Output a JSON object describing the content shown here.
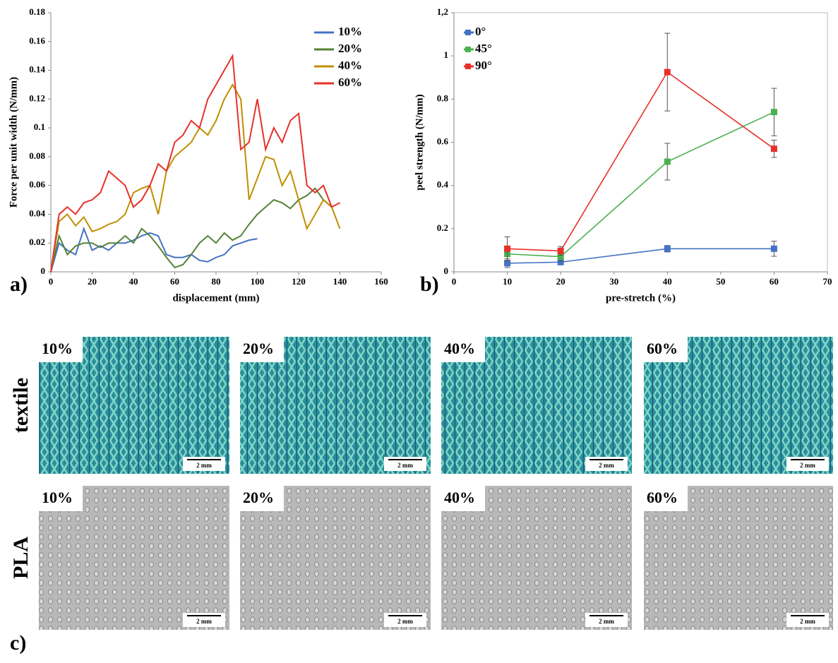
{
  "chart_data": [
    {
      "type": "line",
      "x_label": "displacement (mm)",
      "y_label": "Force per unit width (N/mm)",
      "x": [
        0,
        4,
        8,
        12,
        16,
        20,
        24,
        28,
        32,
        36,
        40,
        44,
        48,
        52,
        56,
        60,
        64,
        68,
        72,
        76,
        80,
        84,
        88,
        92,
        96,
        100,
        104,
        108,
        112,
        116,
        120,
        124,
        128,
        132,
        136,
        140,
        144
      ],
      "series": [
        {
          "name": "10%",
          "color": "#4472c4",
          "values": [
            0,
            0.02,
            0.015,
            0.012,
            0.03,
            0.015,
            0.018,
            0.015,
            0.02,
            0.02,
            0.022,
            0.025,
            0.027,
            0.025,
            0.012,
            0.01,
            0.01,
            0.012,
            0.008,
            0.007,
            0.01,
            0.012,
            0.018,
            0.02,
            0.022,
            0.023,
            null,
            null,
            null,
            null,
            null,
            null,
            null,
            null,
            null,
            null,
            null
          ]
        },
        {
          "name": "20%",
          "color": "#548235",
          "values": [
            0,
            0.025,
            0.012,
            0.018,
            0.02,
            0.02,
            0.017,
            0.02,
            0.02,
            0.025,
            0.02,
            0.03,
            0.025,
            0.018,
            0.01,
            0.003,
            0.005,
            0.012,
            0.02,
            0.025,
            0.02,
            0.027,
            0.022,
            0.025,
            0.033,
            0.04,
            0.045,
            0.05,
            0.048,
            0.044,
            0.05,
            0.053,
            0.058,
            0.05,
            0.045,
            null,
            null
          ]
        },
        {
          "name": "40%",
          "color": "#bf9000",
          "values": [
            0,
            0.035,
            0.04,
            0.032,
            0.038,
            0.028,
            0.03,
            0.033,
            0.035,
            0.04,
            0.055,
            0.058,
            0.06,
            0.04,
            0.07,
            0.08,
            0.085,
            0.09,
            0.1,
            0.095,
            0.105,
            0.12,
            0.13,
            0.12,
            0.05,
            0.065,
            0.08,
            0.078,
            0.06,
            0.07,
            0.05,
            0.03,
            0.04,
            0.05,
            0.045,
            0.03,
            null
          ]
        },
        {
          "name": "60%",
          "color": "#e8302a",
          "values": [
            0,
            0.04,
            0.045,
            0.04,
            0.048,
            0.05,
            0.055,
            0.07,
            0.065,
            0.06,
            0.045,
            0.05,
            0.06,
            0.075,
            0.07,
            0.09,
            0.095,
            0.105,
            0.1,
            0.12,
            0.13,
            0.14,
            0.15,
            0.085,
            0.09,
            0.12,
            0.085,
            0.1,
            0.09,
            0.105,
            0.11,
            0.06,
            0.055,
            0.06,
            0.045,
            0.048,
            null
          ]
        }
      ],
      "xlim": [
        0,
        160
      ],
      "xticks": [
        0,
        20,
        40,
        60,
        80,
        100,
        120,
        140,
        160
      ],
      "ylim": [
        0,
        0.18
      ],
      "yticks": [
        0,
        0.02,
        0.04,
        0.06,
        0.08,
        0.1,
        0.12,
        0.14,
        0.16,
        0.18
      ],
      "legend": "upper right",
      "markers": false,
      "frame": false
    },
    {
      "type": "line",
      "x_label": "pre-stretch (%)",
      "y_label": "peel strength (N/mm)",
      "x": [
        10,
        20,
        40,
        60
      ],
      "series": [
        {
          "name": "0°",
          "color": "#4472c4",
          "values": [
            0.04,
            0.045,
            0.107,
            0.107
          ],
          "errors": [
            0.02,
            0.01,
            0.015,
            0.035
          ]
        },
        {
          "name": "45°",
          "color": "#4cb050",
          "values": [
            0.083,
            0.07,
            0.51,
            0.74
          ],
          "errors": [
            0.03,
            0.02,
            0.085,
            0.11
          ]
        },
        {
          "name": "90°",
          "color": "#e8302a",
          "values": [
            0.107,
            0.097,
            0.925,
            0.57
          ],
          "errors": [
            0.055,
            0.02,
            0.18,
            0.04
          ]
        }
      ],
      "xlim": [
        0,
        70
      ],
      "xticks": [
        0,
        10,
        20,
        30,
        40,
        50,
        60,
        70
      ],
      "ylim": [
        0,
        1.2
      ],
      "yticks": [
        0,
        0.2,
        0.4,
        0.6,
        0.8,
        1,
        {
          "value": 1.2,
          "label": "1,2"
        }
      ],
      "legend": "upper left",
      "markers": true,
      "frame": true
    }
  ],
  "panel_labels": [
    "a)",
    "b)",
    "c)"
  ],
  "image_grid": {
    "rows": [
      "textile",
      "PLA"
    ],
    "columns": [
      "10%",
      "20%",
      "40%",
      "60%"
    ],
    "scale_bar": "2 mm"
  }
}
